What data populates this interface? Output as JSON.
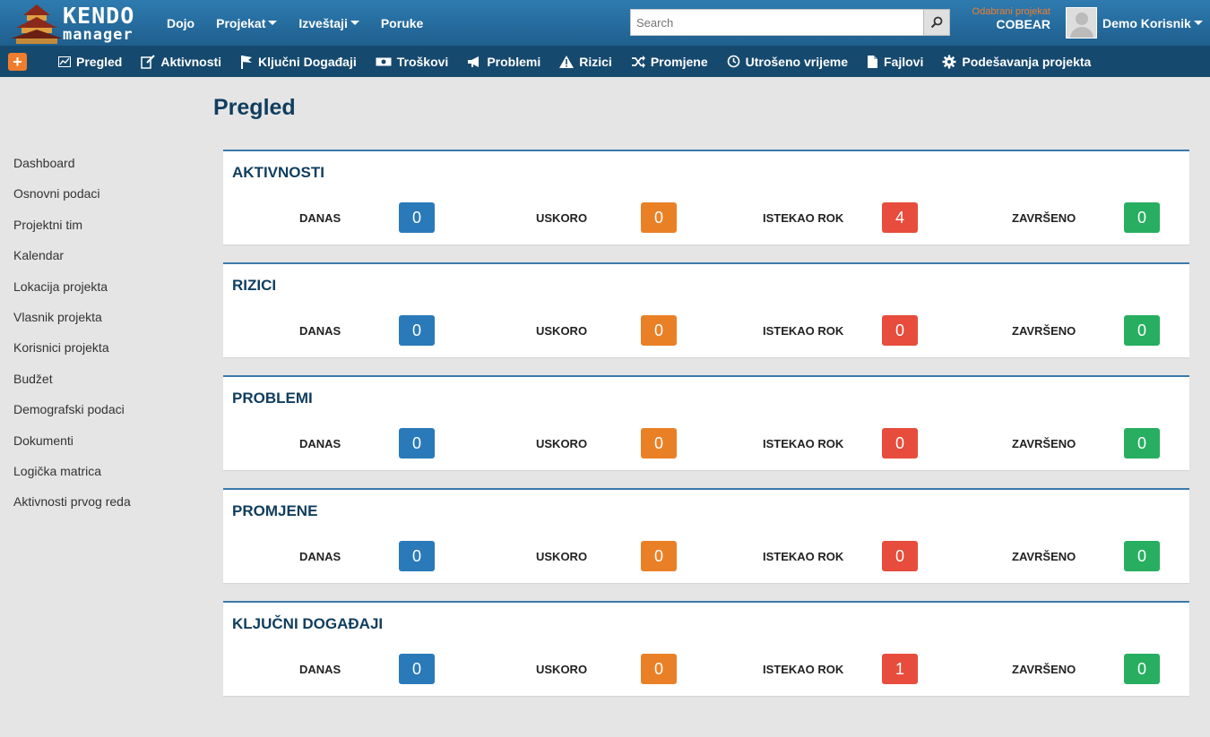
{
  "logo": {
    "line1": "KENDO",
    "line2": "manager"
  },
  "top_nav": [
    {
      "label": "Dojo",
      "dropdown": false
    },
    {
      "label": "Projekat",
      "dropdown": true
    },
    {
      "label": "Izveštaji",
      "dropdown": true
    },
    {
      "label": "Poruke",
      "dropdown": false
    }
  ],
  "search": {
    "placeholder": "Search",
    "value": ""
  },
  "project_selector": {
    "label": "Odabrani projekat",
    "name": "COBEAR"
  },
  "user": {
    "name": "Demo Korisnik"
  },
  "add_button": "+",
  "sub_nav": [
    {
      "label": "Pregled",
      "icon": "chart-icon"
    },
    {
      "label": "Aktivnosti",
      "icon": "edit-icon"
    },
    {
      "label": "Ključni Događaji",
      "icon": "flag-icon"
    },
    {
      "label": "Troškovi",
      "icon": "money-icon"
    },
    {
      "label": "Problemi",
      "icon": "megaphone-icon"
    },
    {
      "label": "Rizici",
      "icon": "warning-icon"
    },
    {
      "label": "Promjene",
      "icon": "shuffle-icon"
    },
    {
      "label": "Utrošeno vrijeme",
      "icon": "clock-icon"
    },
    {
      "label": "Fajlovi",
      "icon": "file-icon"
    },
    {
      "label": "Podešavanja projekta",
      "icon": "gear-icon"
    }
  ],
  "page": {
    "title": "Pregled"
  },
  "sidebar": [
    "Dashboard",
    "Osnovni podaci",
    "Projektni tim",
    "Kalendar",
    "Lokacija projekta",
    "Vlasnik projekta",
    "Korisnici projekta",
    "Budžet",
    "Demografski podaci",
    "Dokumenti",
    "Logička matrica",
    "Aktivnosti prvog reda"
  ],
  "stat_labels": {
    "today": "DANAS",
    "soon": "USKORO",
    "overdue": "ISTEKAO ROK",
    "done": "ZAVRŠENO"
  },
  "panels": [
    {
      "title": "AKTIVNOSTI",
      "today": "0",
      "soon": "0",
      "overdue": "4",
      "done": "0"
    },
    {
      "title": "RIZICI",
      "today": "0",
      "soon": "0",
      "overdue": "0",
      "done": "0"
    },
    {
      "title": "PROBLEMI",
      "today": "0",
      "soon": "0",
      "overdue": "0",
      "done": "0"
    },
    {
      "title": "PROMJENE",
      "today": "0",
      "soon": "0",
      "overdue": "0",
      "done": "0"
    },
    {
      "title": "KLJUČNI DOGAĐAJI",
      "today": "0",
      "soon": "0",
      "overdue": "1",
      "done": "0"
    }
  ],
  "colors": {
    "today": "#2a7ab9",
    "soon": "#ea8025",
    "overdue": "#e74c3c",
    "done": "#27ae60",
    "navbar": "#1f5f8e",
    "subnav": "#16496e"
  }
}
